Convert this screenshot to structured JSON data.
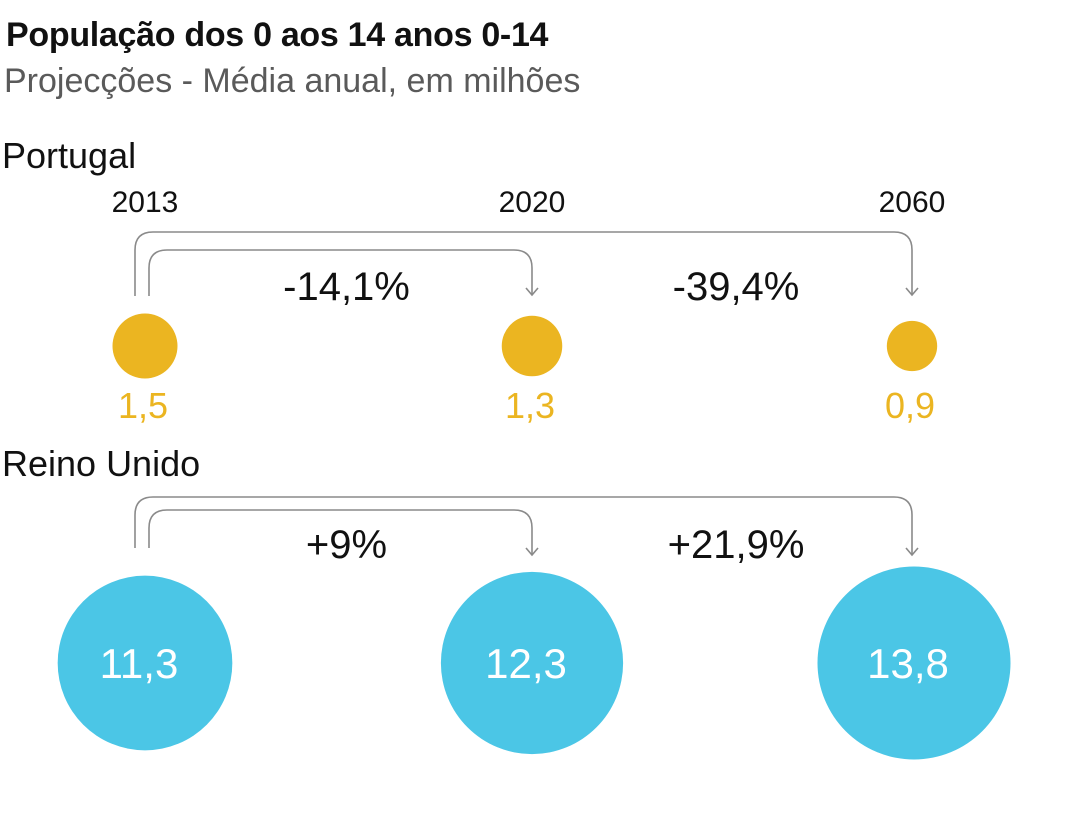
{
  "title": "População dos 0 aos 14 anos 0-14",
  "subtitle": "Projecções - Média anual, em milhões",
  "colors": {
    "portugal": "#EBB521",
    "reino_unido": "#4BC6E6",
    "arrow": "#8a8a8a"
  },
  "chart_data": [
    {
      "type": "bubble",
      "name": "Portugal",
      "categories": [
        "2013",
        "2020",
        "2060"
      ],
      "values": [
        1.5,
        1.3,
        0.9
      ],
      "value_labels": [
        "1,5",
        "1,3",
        "0,9"
      ],
      "changes": [
        {
          "from": "2013",
          "to": "2020",
          "label": "-14,1%"
        },
        {
          "from": "2013",
          "to": "2060",
          "label": "-39,4%"
        }
      ]
    },
    {
      "type": "bubble",
      "name": "Reino Unido",
      "categories": [
        "2013",
        "2020",
        "2060"
      ],
      "values": [
        11.3,
        12.3,
        13.8
      ],
      "value_labels": [
        "11,3",
        "12,3",
        "13,8"
      ],
      "changes": [
        {
          "from": "2013",
          "to": "2020",
          "label": "+9%"
        },
        {
          "from": "2013",
          "to": "2060",
          "label": "+21,9%"
        }
      ]
    }
  ]
}
